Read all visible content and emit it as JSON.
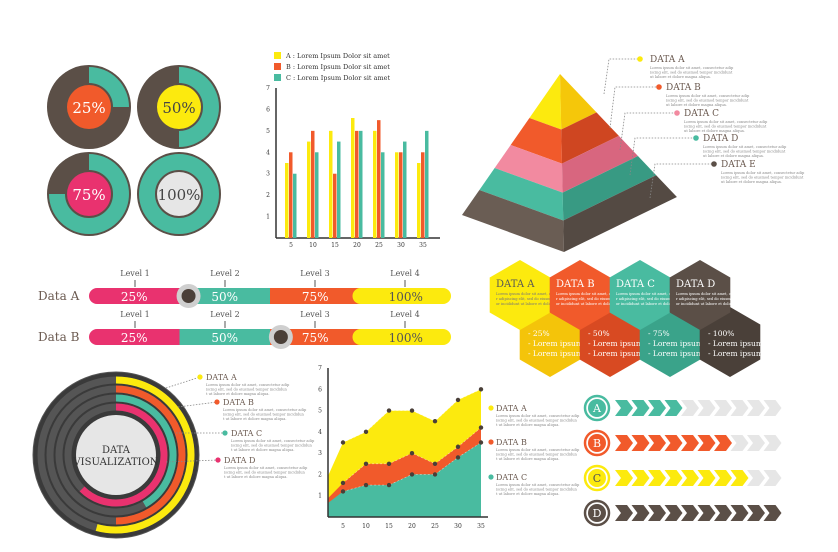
{
  "colors": {
    "dark": "#5b4f47",
    "teal": "#49bba0",
    "pink": "#e9326f",
    "yellow": "#fcea0e",
    "orange": "#f15a2b",
    "lightgray": "#e6e6e6",
    "text": "#6b5a50"
  },
  "donuts": [
    {
      "label": "25%",
      "percent": 25,
      "inner": "#f15a2b"
    },
    {
      "label": "50%",
      "percent": 50,
      "inner": "#fcea0e"
    },
    {
      "label": "75%",
      "percent": 75,
      "inner": "#e9326f"
    },
    {
      "label": "100%",
      "percent": 100,
      "inner": "#e6e6e6"
    }
  ],
  "legend_top": [
    "A : Lorem Ipsum Dolor sit amet",
    "B : Lorem Ipsum Dolor sit amet",
    "C : Lorem Ipsum Dolor sit amet"
  ],
  "chart_data": [
    {
      "type": "bar",
      "categories": [
        "5",
        "10",
        "15",
        "20",
        "25",
        "30",
        "35"
      ],
      "series": [
        {
          "name": "A",
          "values": [
            3.5,
            4.5,
            5,
            5.6,
            5,
            4,
            3.5
          ]
        },
        {
          "name": "B",
          "values": [
            4,
            5,
            3,
            5,
            5.5,
            4,
            4
          ]
        },
        {
          "name": "C",
          "values": [
            3,
            4,
            4.5,
            5,
            4,
            4.5,
            5
          ]
        }
      ],
      "yticks": [
        "1",
        "2",
        "3",
        "4",
        "5",
        "6",
        "7"
      ],
      "ylim": [
        0,
        7
      ]
    },
    {
      "type": "area",
      "x": [
        "5",
        "10",
        "15",
        "20",
        "25",
        "30",
        "35"
      ],
      "series": [
        {
          "name": "DATA A",
          "values": [
            3.5,
            4,
            5,
            5,
            4.5,
            5.5,
            6
          ]
        },
        {
          "name": "DATA B",
          "values": [
            1.6,
            2.5,
            2.5,
            3,
            2.5,
            3.3,
            4.2
          ]
        },
        {
          "name": "DATA C",
          "values": [
            1.2,
            1.5,
            1.5,
            2,
            2,
            2.8,
            3.5
          ]
        }
      ],
      "yticks": [
        "1",
        "2",
        "3",
        "4",
        "5",
        "6",
        "7"
      ],
      "ylim": [
        0,
        7
      ]
    }
  ],
  "pyramid_labels": [
    {
      "title": "DATA A",
      "color": "#fcea0e"
    },
    {
      "title": "DATA B",
      "color": "#f15a2b"
    },
    {
      "title": "DATA C",
      "color": "#f28aa0"
    },
    {
      "title": "DATA D",
      "color": "#49bba0"
    },
    {
      "title": "DATA E",
      "color": "#5b4f47"
    }
  ],
  "lorem_small": "Lorem ipsum dolor sit amet, consectetur adipiscing elit, sed do eiusmod tempor incididunt ut labore et dolore magna aliqua.",
  "progress_bars": [
    {
      "name": "Data A",
      "marker": 0.275
    },
    {
      "name": "Data B",
      "marker": 0.53
    }
  ],
  "levels": [
    "Level 1",
    "Level 2",
    "Level 3",
    "Level 4"
  ],
  "segment_labels": [
    "25%",
    "50%",
    "75%",
    "100%"
  ],
  "hexagons": [
    {
      "title": "DATA A",
      "color": "#fcea0e"
    },
    {
      "title": "DATA B",
      "color": "#f15a2b"
    },
    {
      "title": "DATA C",
      "color": "#49bba0"
    },
    {
      "title": "DATA D",
      "color": "#5b4f47"
    }
  ],
  "hex_bottom": [
    {
      "pct": "- 25%",
      "l1": "- Lorem ipsum",
      "l2": "- Lorem ipsum"
    },
    {
      "pct": "- 50%",
      "l1": "- Lorem ipsum",
      "l2": "- Lorem ipsum"
    },
    {
      "pct": "- 75%",
      "l1": "- Lorem ipsum",
      "l2": "- Lorem ipsum"
    },
    {
      "pct": "- 100%",
      "l1": "- Lorem ipsum",
      "l2": "- Lorem ipsum"
    }
  ],
  "radial": {
    "center_line1": "DATA",
    "center_line2": "VISUALIZATION",
    "labels": [
      "DATA A",
      "DATA B",
      "DATA C",
      "DATA D"
    ]
  },
  "arrow_rows": [
    {
      "letter": "A",
      "color": "#49bba0",
      "filled": 4,
      "total": 10
    },
    {
      "letter": "B",
      "color": "#f15a2b",
      "filled": 7,
      "total": 10
    },
    {
      "letter": "C",
      "color": "#fcea0e",
      "filled": 8,
      "total": 10
    },
    {
      "letter": "D",
      "color": "#5b4f47",
      "filled": 10,
      "total": 10
    }
  ]
}
